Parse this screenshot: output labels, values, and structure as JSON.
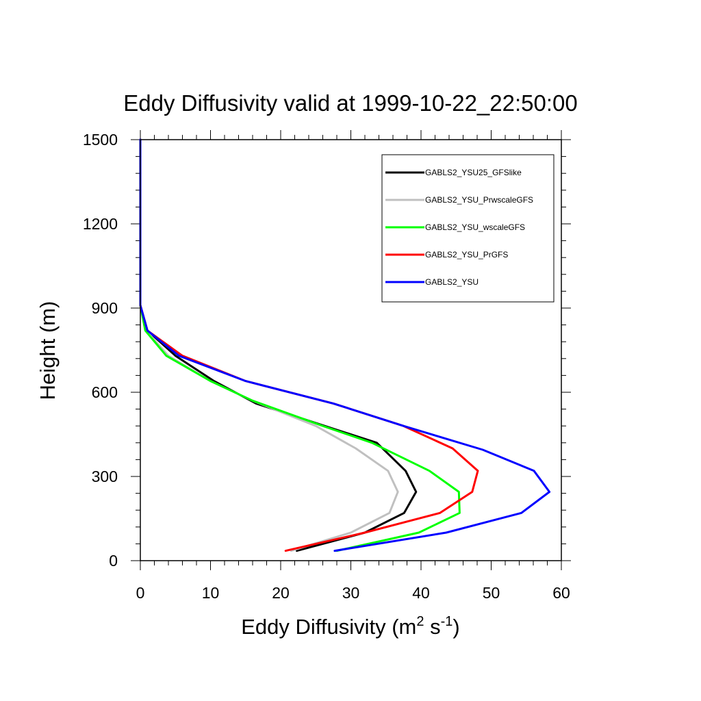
{
  "chart_data": {
    "type": "line",
    "title": "Eddy Diffusivity valid at 1999-10-22_22:50:00",
    "xlabel_base": "Eddy Diffusivity (m",
    "xlabel_sup1": "2",
    "xlabel_mid": " s",
    "xlabel_sup2": "-1",
    "xlabel_end": ")",
    "ylabel": "Height (m)",
    "xlim": [
      0,
      60
    ],
    "ylim": [
      0,
      1500
    ],
    "xticks": [
      0,
      10,
      20,
      30,
      40,
      50,
      60
    ],
    "yticks": [
      0,
      300,
      600,
      900,
      1200,
      1500
    ],
    "grid": false,
    "legend_position": "top-right",
    "series": [
      {
        "name": "GABLS2_YSU25_GFSlike",
        "color": "#000000",
        "points": [
          [
            22.3,
            35
          ],
          [
            32,
            100
          ],
          [
            37.6,
            170
          ],
          [
            39.3,
            245
          ],
          [
            37.8,
            320
          ],
          [
            33.7,
            420
          ],
          [
            27.5,
            470
          ],
          [
            16.5,
            560
          ],
          [
            10.5,
            640
          ],
          [
            5,
            730
          ],
          [
            1,
            820
          ],
          [
            0,
            910
          ],
          [
            0,
            1500
          ]
        ]
      },
      {
        "name": "GABLS2_YSU_PrwscaleGFS",
        "color": "#c0c0c0",
        "points": [
          [
            21.5,
            35
          ],
          [
            30,
            100
          ],
          [
            35.5,
            170
          ],
          [
            36.7,
            245
          ],
          [
            35.3,
            320
          ],
          [
            30.7,
            400
          ],
          [
            25,
            480
          ],
          [
            16,
            570
          ],
          [
            10,
            640
          ],
          [
            4,
            730
          ],
          [
            0.8,
            820
          ],
          [
            0,
            910
          ],
          [
            0,
            1500
          ]
        ]
      },
      {
        "name": "GABLS2_YSU_wscaleGFS",
        "color": "#00ff00",
        "points": [
          [
            28,
            35
          ],
          [
            39.7,
            100
          ],
          [
            45.5,
            170
          ],
          [
            45.4,
            245
          ],
          [
            41.2,
            320
          ],
          [
            33,
            420
          ],
          [
            26,
            480
          ],
          [
            16,
            570
          ],
          [
            10,
            640
          ],
          [
            3.7,
            730
          ],
          [
            0.7,
            820
          ],
          [
            0,
            910
          ],
          [
            0,
            1500
          ]
        ]
      },
      {
        "name": "GABLS2_YSU_PrGFS",
        "color": "#ff0000",
        "points": [
          [
            20.7,
            35
          ],
          [
            32,
            100
          ],
          [
            42.7,
            170
          ],
          [
            47.3,
            245
          ],
          [
            48.1,
            320
          ],
          [
            44.5,
            400
          ],
          [
            37.5,
            480
          ],
          [
            27.5,
            560
          ],
          [
            15,
            640
          ],
          [
            6,
            730
          ],
          [
            1,
            820
          ],
          [
            0,
            910
          ],
          [
            0,
            1500
          ]
        ]
      },
      {
        "name": "GABLS2_YSU",
        "color": "#0000ff",
        "points": [
          [
            27.7,
            35
          ],
          [
            43.6,
            100
          ],
          [
            54.3,
            170
          ],
          [
            58.3,
            245
          ],
          [
            56.1,
            320
          ],
          [
            48.8,
            395
          ],
          [
            37.5,
            480
          ],
          [
            27.5,
            560
          ],
          [
            15,
            640
          ],
          [
            5.5,
            730
          ],
          [
            1,
            820
          ],
          [
            0,
            910
          ],
          [
            0,
            1500
          ]
        ]
      }
    ]
  }
}
